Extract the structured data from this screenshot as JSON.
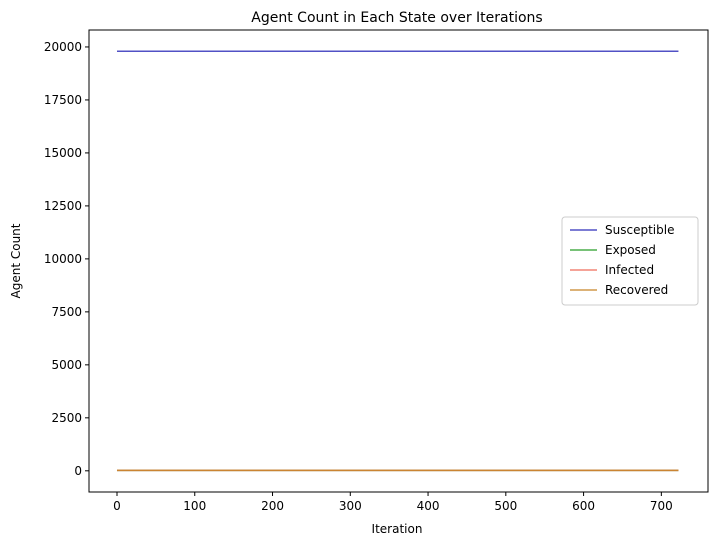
{
  "chart_data": {
    "type": "line",
    "title": "Agent Count in Each State over Iterations",
    "xlabel": "Iteration",
    "ylabel": "Agent Count",
    "xlim": [
      -36,
      760
    ],
    "ylim": [
      -1000,
      20800
    ],
    "xticks": [
      0,
      100,
      200,
      300,
      400,
      500,
      600,
      700
    ],
    "yticks": [
      0,
      2500,
      5000,
      7500,
      10000,
      12500,
      15000,
      17500,
      20000
    ],
    "grid": false,
    "legend_position": "center-right",
    "series": [
      {
        "name": "Susceptible",
        "color": "#3333bb",
        "x": [
          0,
          722
        ],
        "y": [
          19800,
          19800
        ]
      },
      {
        "name": "Exposed",
        "color": "#2ca02c",
        "x": [
          0,
          722
        ],
        "y": [
          20,
          20
        ]
      },
      {
        "name": "Infected",
        "color": "#f0705f",
        "x": [
          0,
          722
        ],
        "y": [
          20,
          20
        ]
      },
      {
        "name": "Recovered",
        "color": "#c8862a",
        "x": [
          0,
          722
        ],
        "y": [
          20,
          20
        ]
      }
    ]
  }
}
